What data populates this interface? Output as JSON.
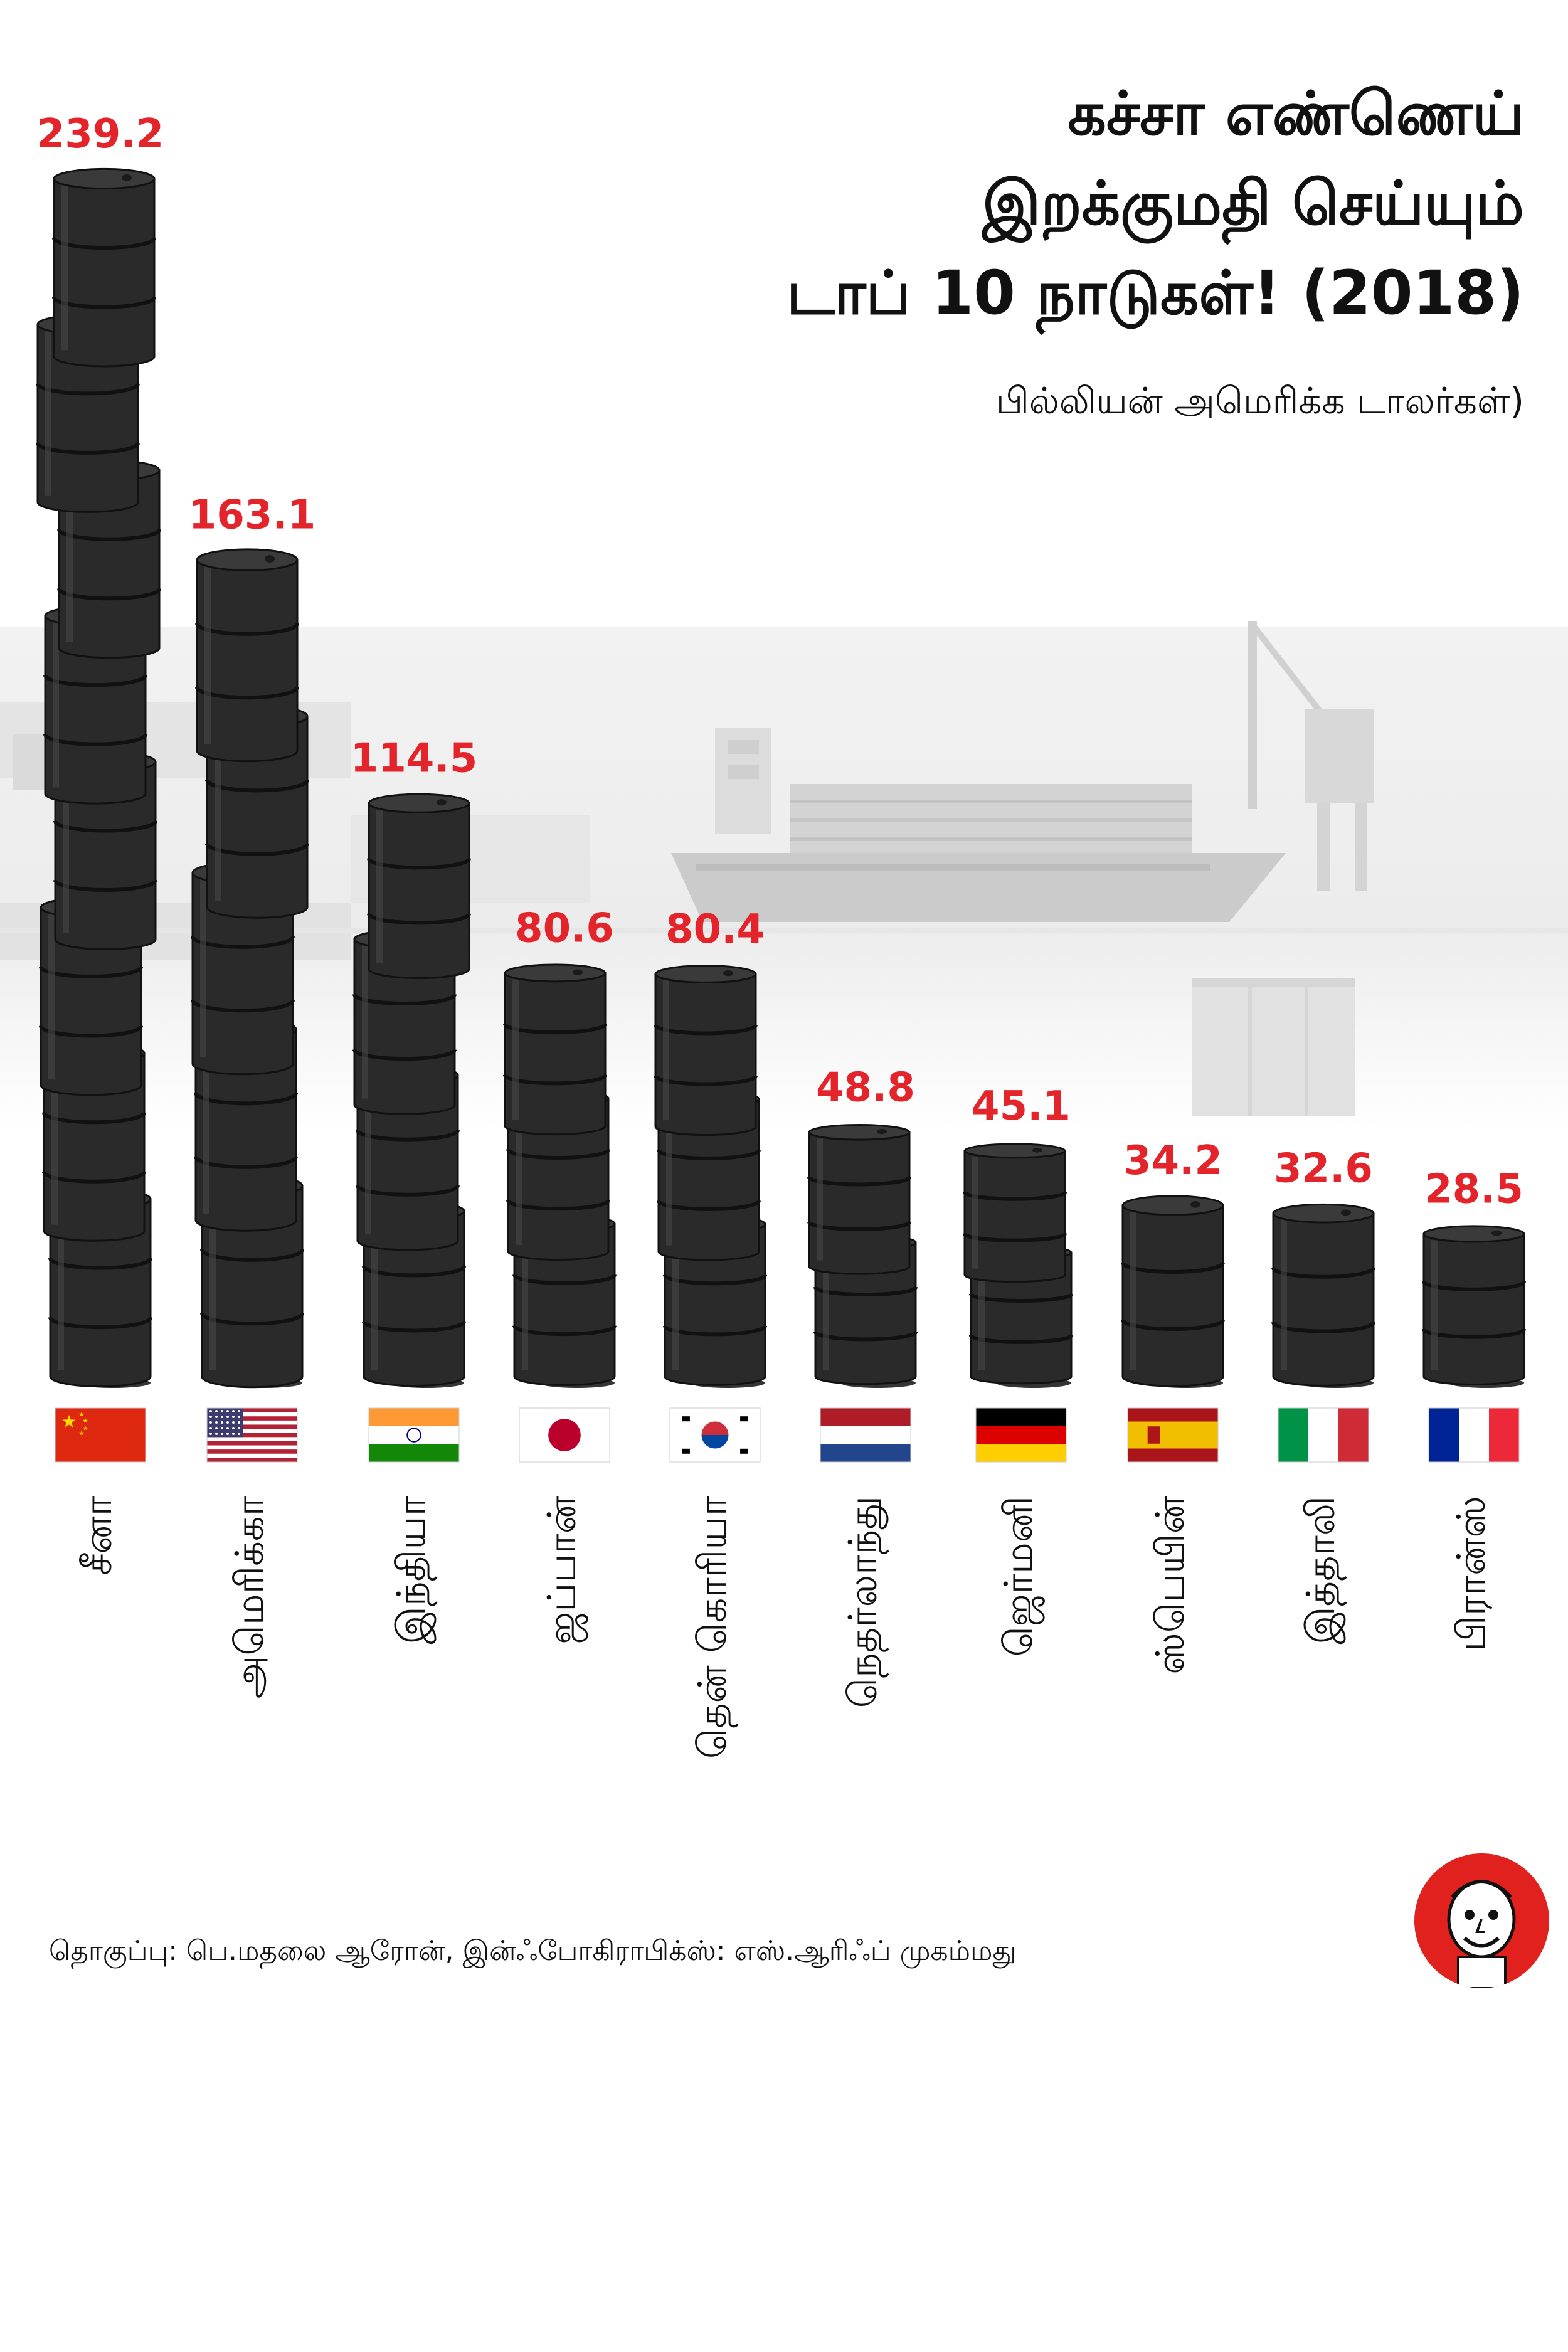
{
  "title": [
    "கச்சா எண்ணெய்",
    "இறக்குமதி செய்யும்",
    "டாப் 10 நாடுகள்! (2018)"
  ],
  "subtitle": "பில்லியன் அமெரிக்க டாலர்கள்)",
  "credit": "தொகுப்பு: பெ.மதலை ஆரோன், இன்ஃபோகிராபிக்ஸ்: எஸ்.ஆரிஃப் முகம்மது",
  "colors": {
    "value": "#e3242b",
    "barrel": "#2a2a2a",
    "barrel_dark": "#111111",
    "logo": "#e0211d"
  },
  "chart_data": {
    "type": "bar",
    "unit": "பில்லியன் அமெரிக்க டாலர்கள்",
    "categories": [
      "சீனா",
      "அமெரிக்கா",
      "இந்தியா",
      "ஜப்பான்",
      "தென் கொரியா",
      "நெதர்லாந்து",
      "ஜெர்மனி",
      "ஸ்பெயின்",
      "இத்தாலி",
      "பிரான்ஸ்"
    ],
    "values": [
      239.2,
      163.1,
      114.5,
      80.6,
      80.4,
      48.8,
      45.1,
      34.2,
      32.6,
      28.5
    ],
    "value_labels": [
      "239.2",
      "163.1",
      "114.5",
      "80.6",
      "80.4",
      "48.8",
      "45.1",
      "34.2",
      "32.6",
      "28.5"
    ],
    "flags": [
      "china",
      "usa",
      "india",
      "japan",
      "south-korea",
      "netherlands",
      "germany",
      "spain",
      "italy",
      "france"
    ],
    "barrel_counts": [
      8,
      5,
      4,
      3,
      3,
      2,
      2,
      1,
      1,
      1
    ]
  }
}
